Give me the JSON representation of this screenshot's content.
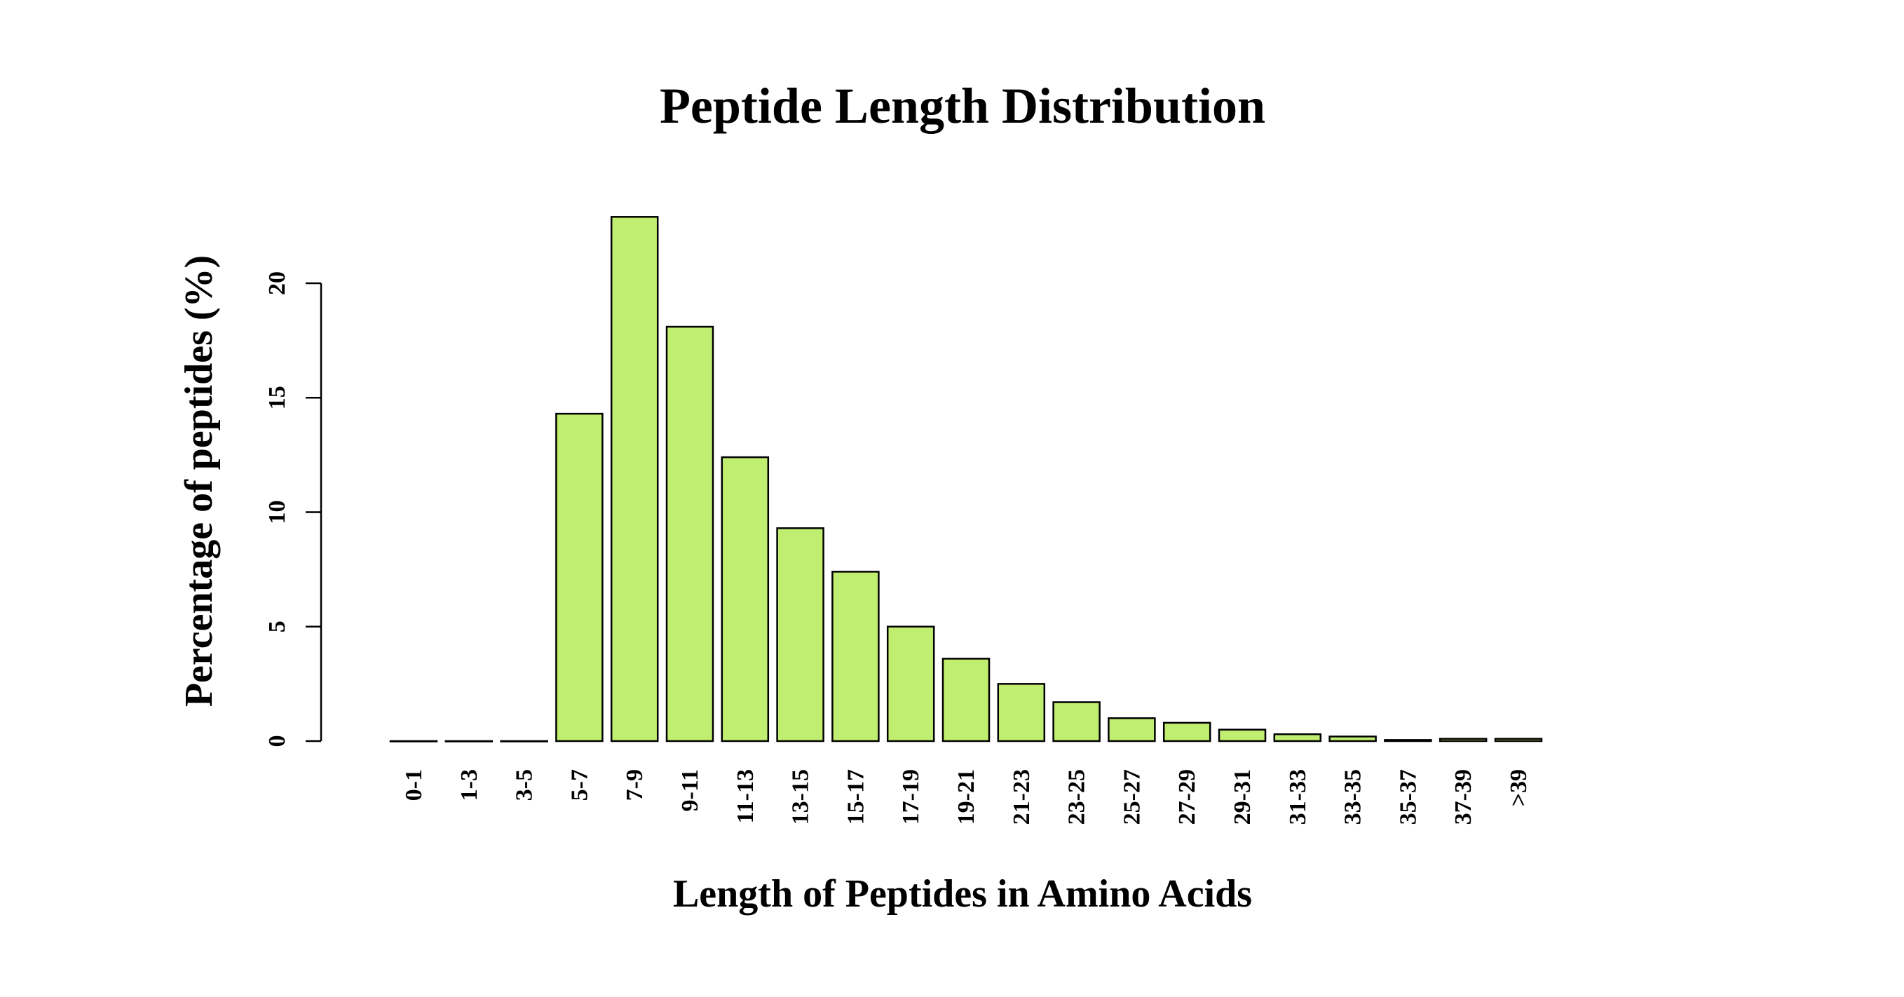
{
  "chart_data": {
    "type": "bar",
    "title": "Peptide Length Distribution",
    "xlabel": "Length of Peptides in Amino Acids",
    "ylabel": "Percentage of peptides (%)",
    "ylim": [
      0,
      23
    ],
    "yticks": [
      0,
      5,
      10,
      15,
      20
    ],
    "grid": false,
    "legend": "none",
    "bar_color": "#c0ee70",
    "edge_color": "#000000",
    "categories": [
      "0-1",
      "1-3",
      "3-5",
      "5-7",
      "7-9",
      "9-11",
      "11-13",
      "13-15",
      "15-17",
      "17-19",
      "19-21",
      "21-23",
      "23-25",
      "25-27",
      "27-29",
      "29-31",
      "31-33",
      "33-35",
      "35-37",
      "37-39",
      ">39"
    ],
    "values": [
      0.0,
      0.0,
      0.0,
      14.3,
      22.9,
      18.1,
      12.4,
      9.3,
      7.4,
      5.0,
      3.6,
      2.5,
      1.7,
      1.0,
      0.8,
      0.5,
      0.3,
      0.2,
      0.05,
      0.1,
      0.1
    ]
  }
}
